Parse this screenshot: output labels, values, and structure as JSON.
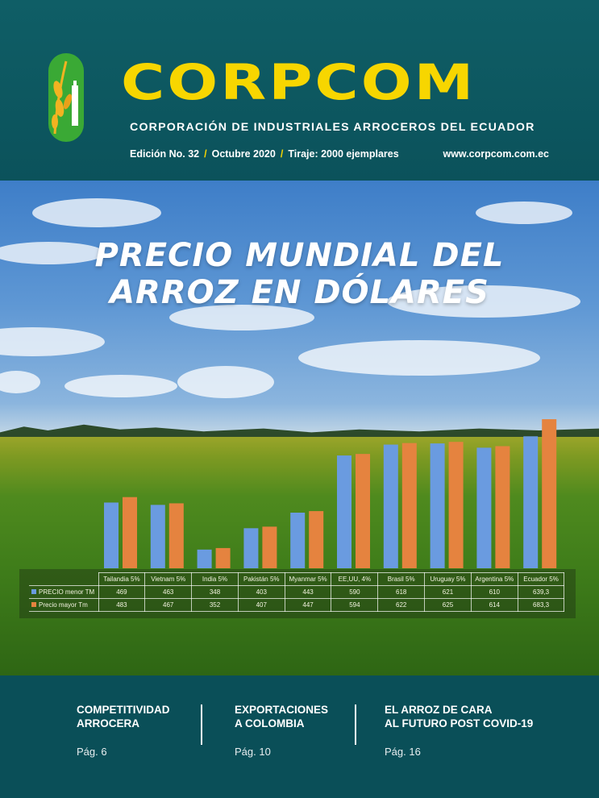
{
  "header": {
    "brand": "CORPCOM",
    "subtitle": "CORPORACIÓN DE INDUSTRIALES ARROCEROS DEL ECUADOR",
    "edition": "Edición No. 32",
    "date": "Octubre 2020",
    "print_run": "Tiraje: 2000 ejemplares",
    "separator": "/",
    "url": "www.corpcom.com.ec"
  },
  "cover": {
    "headline_line1": "PRECIO MUNDIAL DEL",
    "headline_line2": "ARROZ EN DÓLARES"
  },
  "chart_data": {
    "type": "bar",
    "categories": [
      "Tailandia 5%",
      "Vietnam 5%",
      "India 5%",
      "Pakistán 5%",
      "Myanmar 5%",
      "EE,UU, 4%",
      "Brasil 5%",
      "Uruguay 5%",
      "Argentina 5%",
      "Ecuador 5%"
    ],
    "series": [
      {
        "name": "PRECIO menor TM",
        "color": "#6a9be0",
        "values": [
          469,
          463,
          348,
          403,
          443,
          590,
          618,
          621,
          610,
          639.3
        ],
        "labels": [
          "469",
          "463",
          "348",
          "403",
          "443",
          "590",
          "618",
          "621",
          "610",
          "639,3"
        ]
      },
      {
        "name": "Precio mayor Tm",
        "color": "#e5833f",
        "values": [
          483,
          467,
          352,
          407,
          447,
          594,
          622,
          625,
          614,
          683.3
        ],
        "labels": [
          "483",
          "467",
          "352",
          "407",
          "447",
          "594",
          "622",
          "625",
          "614",
          "683,3"
        ]
      }
    ],
    "ylim": [
      300,
      700
    ],
    "grid": false,
    "legend": "in data table"
  },
  "footer": {
    "articles": [
      {
        "title": "COMPETITIVIDAD\nARROCERA",
        "page": "Pág. 6"
      },
      {
        "title": "EXPORTACIONES\nA COLOMBIA",
        "page": "Pág. 10"
      },
      {
        "title": "EL ARROZ DE CARA\nAL FUTURO POST COVID-19",
        "page": "Pág. 16"
      }
    ]
  }
}
